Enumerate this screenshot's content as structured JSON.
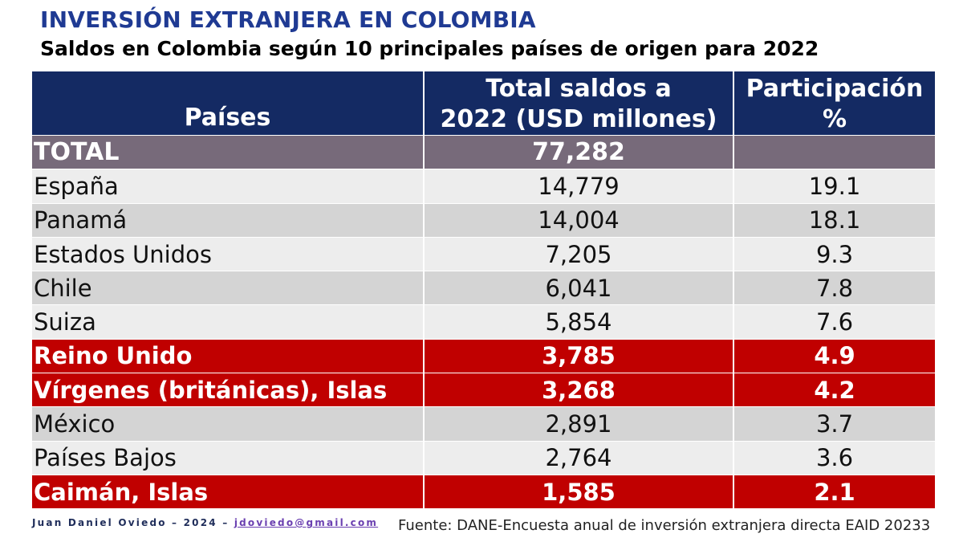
{
  "header": {
    "title": "INVERSIÓN EXTRANJERA EN COLOMBIA",
    "subtitle": "Saldos en Colombia según 10 principales países de origen para 2022"
  },
  "table": {
    "columns": [
      "Países",
      "Total saldos a 2022 (USD millones)",
      "Participación %"
    ],
    "total": {
      "label": "TOTAL",
      "value": "77,282",
      "share": ""
    },
    "rows": [
      {
        "country": "España",
        "value": "14,779",
        "share": "19.1",
        "style": "light"
      },
      {
        "country": "Panamá",
        "value": "14,004",
        "share": "18.1",
        "style": "dark"
      },
      {
        "country": "Estados Unidos",
        "value": "7,205",
        "share": "9.3",
        "style": "light"
      },
      {
        "country": "Chile",
        "value": "6,041",
        "share": "7.8",
        "style": "dark"
      },
      {
        "country": "Suiza",
        "value": "5,854",
        "share": "7.6",
        "style": "light"
      },
      {
        "country": "Reino Unido",
        "value": "3,785",
        "share": "4.9",
        "style": "highlight"
      },
      {
        "country": "Vírgenes (británicas), Islas",
        "value": "3,268",
        "share": "4.2",
        "style": "highlight"
      },
      {
        "country": "México",
        "value": "2,891",
        "share": "3.7",
        "style": "dark"
      },
      {
        "country": "Países Bajos",
        "value": "2,764",
        "share": "3.6",
        "style": "light"
      },
      {
        "country": "Caimán, Islas",
        "value": "1,585",
        "share": "2.1",
        "style": "highlight"
      }
    ]
  },
  "footer": {
    "author": "Juan Daniel Oviedo – 2024 –",
    "email": "jdoviedo@gmail.com",
    "source": "Fuente: DANE-Encuesta anual de inversión extranjera directa EAID 20233"
  },
  "colors": {
    "title": "#1F3A93",
    "header_bg": "#142A63",
    "total_bg": "#776A7A",
    "highlight_bg": "#C00000",
    "row_light": "#EDEDED",
    "row_dark": "#D4D4D4"
  }
}
